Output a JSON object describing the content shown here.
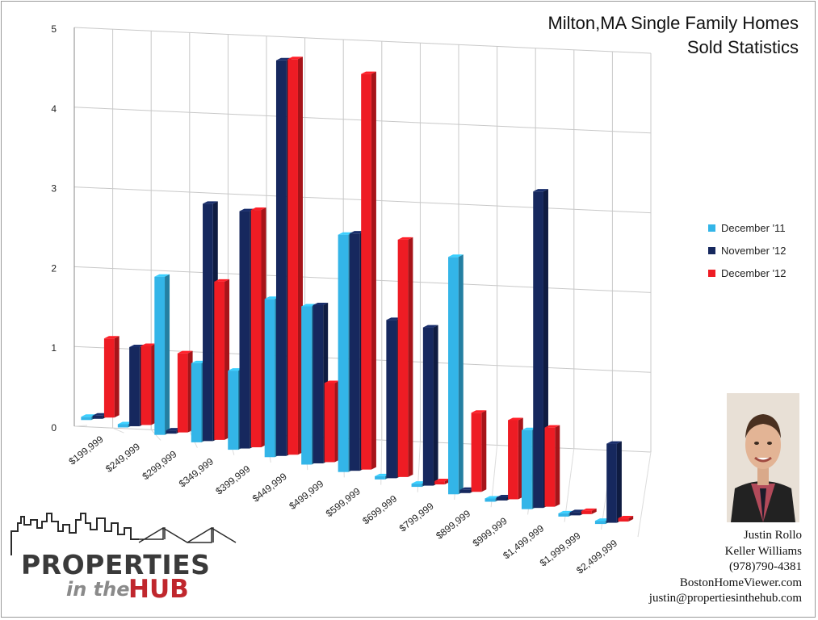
{
  "title_line1": "Milton,MA Single Family Homes",
  "title_line2": "Sold Statistics",
  "chart_data": {
    "type": "bar",
    "categories": [
      "$199,999",
      "$249,999",
      "$299,999",
      "$349,999",
      "$399,999",
      "$449,999",
      "$499,999",
      "$599,999",
      "$699,999",
      "$799,999",
      "$899,999",
      "$999,999",
      "$1,499,999",
      "$1,999,999",
      "$2,499,999"
    ],
    "series": [
      {
        "name": "December '11",
        "color": "#33b5e8",
        "values": [
          0,
          0,
          2,
          1,
          1,
          2,
          2,
          3,
          0,
          0,
          3,
          0,
          1,
          0,
          0
        ]
      },
      {
        "name": "November '12",
        "color": "#16285e",
        "values": [
          0,
          1,
          0,
          3,
          3,
          5,
          2,
          3,
          2,
          2,
          0,
          0,
          4,
          0,
          1
        ]
      },
      {
        "name": "December '12",
        "color": "#ee1c24",
        "values": [
          1,
          1,
          1,
          2,
          3,
          5,
          1,
          5,
          3,
          0,
          1,
          1,
          1,
          0,
          0
        ]
      }
    ],
    "yticks": [
      "0",
      "1",
      "2",
      "3",
      "4",
      "5"
    ],
    "ylim": [
      0,
      5
    ],
    "grid": true,
    "legend_position": "right"
  },
  "agent": {
    "name": "Justin Rollo",
    "company": "Keller Williams",
    "phone": "(978)790-4381",
    "website": "BostonHomeViewer.com",
    "email": "justin@propertiesinthehub.com"
  },
  "logo": {
    "line1": "PROPERTIES",
    "line2": "in the",
    "line3": "HUB"
  }
}
